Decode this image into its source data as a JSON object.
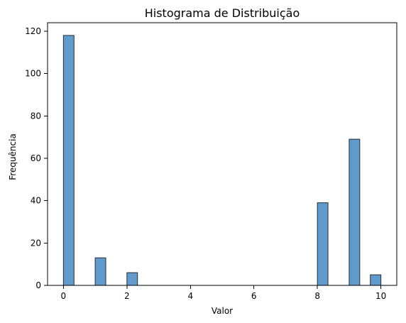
{
  "chart_data": {
    "type": "bar",
    "title": "Histograma de Distribuição",
    "xlabel": "Valor",
    "ylabel": "Frequência",
    "xlim": [
      -0.5,
      10.5
    ],
    "ylim": [
      0,
      124
    ],
    "grid": false,
    "x_ticks": [
      0,
      2,
      4,
      6,
      8,
      10
    ],
    "y_ticks": [
      0,
      20,
      40,
      60,
      80,
      100,
      120
    ],
    "bin_width": 0.3333333333,
    "bins": [
      {
        "start": 0.0,
        "end": 0.3333333333,
        "count": 118
      },
      {
        "start": 1.0,
        "end": 1.3333333333,
        "count": 13
      },
      {
        "start": 2.0,
        "end": 2.3333333333,
        "count": 6
      },
      {
        "start": 8.0,
        "end": 8.3333333333,
        "count": 39
      },
      {
        "start": 9.0,
        "end": 9.3333333333,
        "count": 69
      },
      {
        "start": 9.6666666667,
        "end": 10.0,
        "count": 5
      }
    ],
    "colors": {
      "bar_fill": "#5f9ccd",
      "bar_stroke": "#2b2b2b",
      "axis": "#000000",
      "text": "#000000"
    }
  }
}
